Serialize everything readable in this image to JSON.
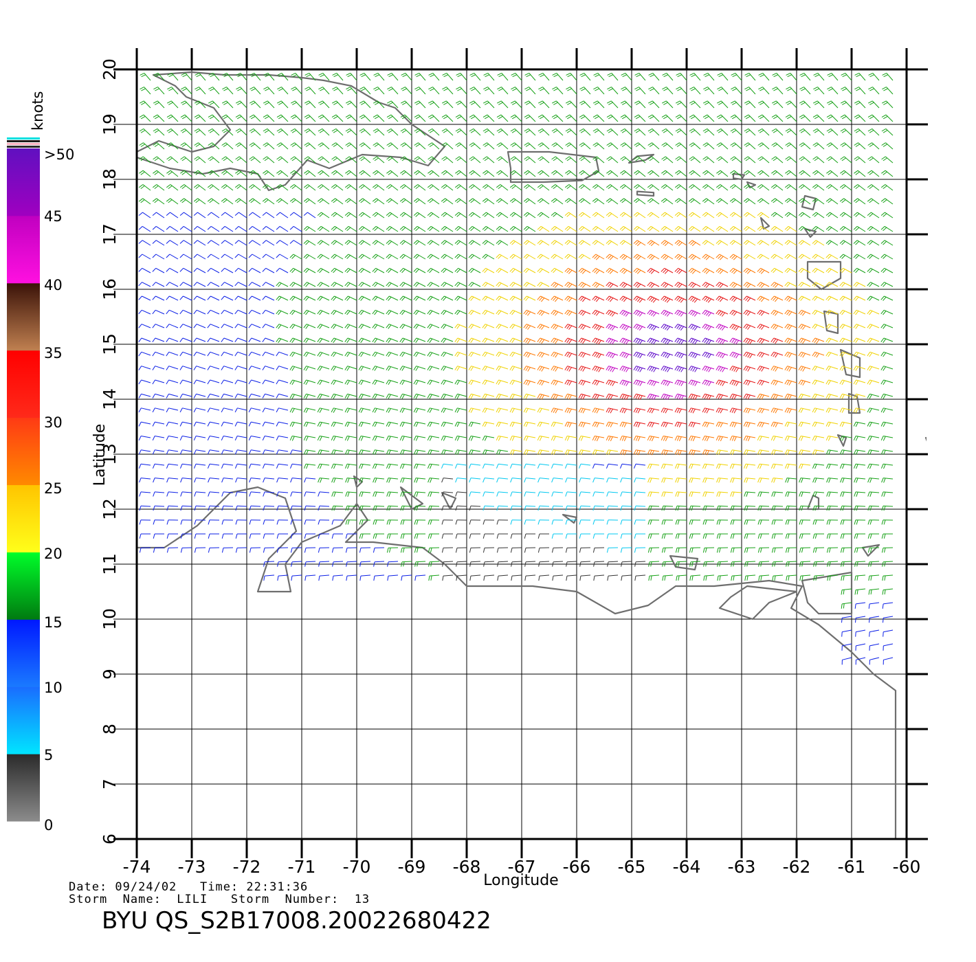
{
  "map": {
    "x_axis_label": "Longitude",
    "y_axis_label": "Latitude",
    "lon_range": [
      -74,
      -60
    ],
    "lat_range": [
      6,
      20
    ],
    "lon_ticks": [
      "-74",
      "-73",
      "-72",
      "-71",
      "-70",
      "-69",
      "-68",
      "-67",
      "-66",
      "-65",
      "-64",
      "-63",
      "-62",
      "-61",
      "-60"
    ],
    "lat_ticks": [
      "6",
      "7",
      "8",
      "9",
      "10",
      "11",
      "12",
      "13",
      "14",
      "15",
      "16",
      "17",
      "18",
      "19",
      "20"
    ],
    "land_color": "#6e6e6e"
  },
  "legend": {
    "unit_label": "knots",
    "labels": [
      ">50",
      "45",
      "40",
      "35",
      "30",
      "25",
      "20",
      "15",
      "10",
      "5",
      "0"
    ],
    "bands": [
      {
        "from": 0,
        "to": 5,
        "top": "#2a2a2a",
        "bottom": "#8c8c8c"
      },
      {
        "from": 5,
        "to": 10,
        "top": "#1a6cff",
        "bottom": "#00e5ff"
      },
      {
        "from": 10,
        "to": 15,
        "top": "#0018ff",
        "bottom": "#1a7aff"
      },
      {
        "from": 15,
        "to": 20,
        "top": "#00ff2a",
        "bottom": "#007a10"
      },
      {
        "from": 20,
        "to": 25,
        "top": "#ffc400",
        "bottom": "#ffff1a"
      },
      {
        "from": 25,
        "to": 30,
        "top": "#ff3a14",
        "bottom": "#ff8a00"
      },
      {
        "from": 30,
        "to": 35,
        "top": "#ff0000",
        "bottom": "#ff2a1a"
      },
      {
        "from": 35,
        "to": 40,
        "top": "#3a1208",
        "bottom": "#c08050"
      },
      {
        "from": 40,
        "to": 45,
        "top": "#c000c0",
        "bottom": "#ff10e0"
      },
      {
        "from": 45,
        "to": 50,
        "top": "#6010c0",
        "bottom": "#a000c0"
      }
    ],
    "cap_colors": [
      "#00e0e0",
      "#1a1a1a",
      "#ffb0c0",
      "#2a2a2a"
    ]
  },
  "info": {
    "line1": "Date: 09/24/02   Time: 22:31:36",
    "line2": "Storm  Name:  LILI   Storm  Number:  13"
  },
  "footer_title": "BYU  QS_S2B17008.20022680422",
  "wind_colors": {
    "calm": "#333333",
    "light": "#00c8f0",
    "moderate": "#0a1ee6",
    "fresh": "#14a014",
    "strong": "#f0d200",
    "gale": "#ff7800",
    "storm": "#e61414",
    "severe": "#c000c0",
    "extreme": "#5a00c8"
  },
  "wind_field": {
    "storm_center": {
      "lon": -64.2,
      "lat": 14.9
    },
    "grid_step_deg": 0.25,
    "bounds": {
      "lon": [
        -74,
        -60.2
      ],
      "lat": [
        9.3,
        19.9
      ]
    }
  },
  "chart_data": {
    "type": "wind-barb map",
    "x_range": [
      -74,
      -60
    ],
    "y_range": [
      6,
      20
    ],
    "color_scale_knots": [
      0,
      5,
      10,
      15,
      20,
      25,
      30,
      35,
      40,
      45,
      50
    ]
  }
}
